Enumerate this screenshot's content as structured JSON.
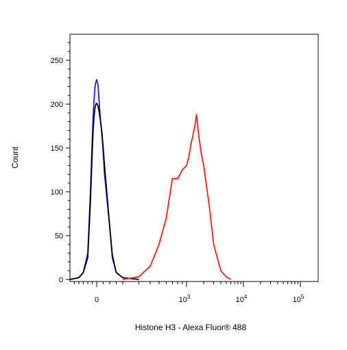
{
  "chart_data": {
    "type": "line",
    "title": "",
    "xlabel": "Histone H3 - Alexa Fluor® 488",
    "ylabel": "Count",
    "x_scale": "biexponential",
    "xlim": [
      -300,
      150000
    ],
    "ylim": [
      0,
      275
    ],
    "grid": false,
    "y_ticks": [
      0,
      50,
      100,
      150,
      200,
      250
    ],
    "y_tick_labels": [
      "0",
      "50",
      "100",
      "150",
      "200",
      "250"
    ],
    "x_ticks": [
      {
        "value": 0,
        "base": "0",
        "exp": ""
      },
      {
        "value": 1000,
        "base": "10",
        "exp": "3"
      },
      {
        "value": 10000,
        "base": "10",
        "exp": "4"
      },
      {
        "value": 100000,
        "base": "10",
        "exp": "5"
      }
    ],
    "series": [
      {
        "color": "#1a1aff",
        "x": [
          -300,
          -200,
          -150,
          -100,
          -70,
          -50,
          -40,
          -30,
          -20,
          -10,
          0,
          10,
          20,
          30,
          40,
          50,
          60,
          80,
          100,
          120,
          150,
          200,
          300
        ],
        "y": [
          0,
          2,
          8,
          30,
          100,
          160,
          185,
          205,
          218,
          225,
          228,
          222,
          200,
          180,
          165,
          145,
          120,
          90,
          60,
          25,
          8,
          2,
          0
        ]
      },
      {
        "color": "#000000",
        "x": [
          -300,
          -200,
          -150,
          -100,
          -70,
          -50,
          -40,
          -30,
          -20,
          -10,
          0,
          10,
          20,
          30,
          40,
          50,
          60,
          80,
          100,
          120,
          150,
          200,
          300
        ],
        "y": [
          0,
          2,
          8,
          25,
          90,
          145,
          170,
          185,
          195,
          200,
          201,
          198,
          190,
          180,
          168,
          150,
          130,
          95,
          60,
          28,
          8,
          2,
          0
        ]
      },
      {
        "color": "#ff1a1a",
        "x": [
          200,
          300,
          400,
          500,
          600,
          700,
          800,
          900,
          1000,
          1100,
          1200,
          1300,
          1400,
          1500,
          1600,
          1800,
          2000,
          2500,
          3000,
          4000,
          5000,
          6000
        ],
        "y": [
          0,
          3,
          15,
          40,
          70,
          115,
          115,
          125,
          130,
          140,
          155,
          165,
          175,
          188,
          170,
          145,
          130,
          85,
          40,
          10,
          3,
          0
        ]
      }
    ]
  }
}
